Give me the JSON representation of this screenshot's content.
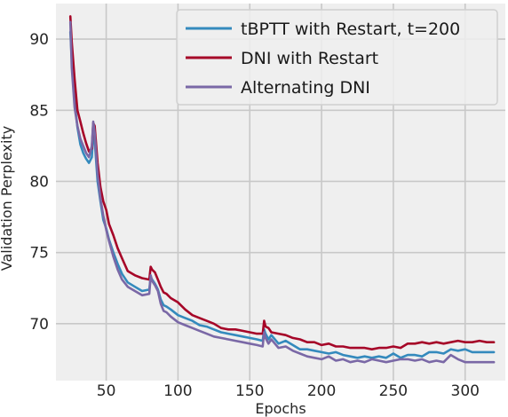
{
  "chart_data": {
    "type": "line",
    "title": "",
    "xlabel": "Epochs",
    "ylabel": "Validation Perplexity",
    "xlim": [
      15,
      328
    ],
    "ylim": [
      66,
      92.5
    ],
    "xticks": [
      50,
      100,
      150,
      200,
      250,
      300
    ],
    "yticks": [
      70,
      75,
      80,
      85,
      90
    ],
    "grid": true,
    "legend_position": "top-right",
    "background": "#efefef",
    "series": [
      {
        "name": "tBPTT with Restart, t=200",
        "color": "#348abd",
        "points": [
          [
            25,
            90.5
          ],
          [
            26,
            88.6
          ],
          [
            28,
            85.6
          ],
          [
            30,
            83.8
          ],
          [
            32,
            82.6
          ],
          [
            34,
            82.0
          ],
          [
            36,
            81.6
          ],
          [
            38,
            81.3
          ],
          [
            40,
            81.7
          ],
          [
            41,
            83.4
          ],
          [
            42,
            82.9
          ],
          [
            44,
            80.0
          ],
          [
            46,
            78.6
          ],
          [
            48,
            77.3
          ],
          [
            50,
            76.7
          ],
          [
            52,
            75.9
          ],
          [
            55,
            75.0
          ],
          [
            58,
            74.2
          ],
          [
            61,
            73.5
          ],
          [
            65,
            72.9
          ],
          [
            70,
            72.6
          ],
          [
            75,
            72.3
          ],
          [
            80,
            72.4
          ],
          [
            81,
            73.3
          ],
          [
            82,
            73.1
          ],
          [
            84,
            72.8
          ],
          [
            86,
            72.4
          ],
          [
            88,
            71.7
          ],
          [
            90,
            71.3
          ],
          [
            92,
            71.2
          ],
          [
            95,
            71.0
          ],
          [
            100,
            70.6
          ],
          [
            105,
            70.4
          ],
          [
            110,
            70.2
          ],
          [
            115,
            69.9
          ],
          [
            120,
            69.8
          ],
          [
            125,
            69.6
          ],
          [
            130,
            69.4
          ],
          [
            135,
            69.3
          ],
          [
            140,
            69.2
          ],
          [
            145,
            69.1
          ],
          [
            150,
            69.0
          ],
          [
            155,
            68.9
          ],
          [
            159,
            68.8
          ],
          [
            160,
            69.6
          ],
          [
            161,
            69.3
          ],
          [
            163,
            68.9
          ],
          [
            165,
            69.2
          ],
          [
            170,
            68.6
          ],
          [
            175,
            68.8
          ],
          [
            180,
            68.5
          ],
          [
            185,
            68.2
          ],
          [
            190,
            68.2
          ],
          [
            195,
            68.1
          ],
          [
            200,
            68.0
          ],
          [
            205,
            67.9
          ],
          [
            210,
            68.0
          ],
          [
            215,
            67.8
          ],
          [
            220,
            67.7
          ],
          [
            225,
            67.6
          ],
          [
            230,
            67.7
          ],
          [
            235,
            67.6
          ],
          [
            240,
            67.7
          ],
          [
            245,
            67.6
          ],
          [
            250,
            67.9
          ],
          [
            255,
            67.6
          ],
          [
            260,
            67.8
          ],
          [
            265,
            67.8
          ],
          [
            270,
            67.7
          ],
          [
            275,
            68.0
          ],
          [
            280,
            68.0
          ],
          [
            285,
            67.9
          ],
          [
            290,
            68.2
          ],
          [
            295,
            68.1
          ],
          [
            300,
            68.2
          ],
          [
            305,
            68.0
          ],
          [
            310,
            68.0
          ],
          [
            315,
            68.0
          ],
          [
            320,
            68.0
          ]
        ]
      },
      {
        "name": "DNI with Restart",
        "color": "#a60628",
        "points": [
          [
            25,
            91.6
          ],
          [
            26,
            89.8
          ],
          [
            28,
            87.2
          ],
          [
            30,
            85.0
          ],
          [
            32,
            84.2
          ],
          [
            34,
            83.4
          ],
          [
            36,
            82.7
          ],
          [
            38,
            82.1
          ],
          [
            40,
            82.3
          ],
          [
            41,
            84.1
          ],
          [
            42,
            83.9
          ],
          [
            44,
            81.3
          ],
          [
            46,
            79.6
          ],
          [
            48,
            78.6
          ],
          [
            50,
            78.0
          ],
          [
            52,
            77.0
          ],
          [
            55,
            76.2
          ],
          [
            58,
            75.3
          ],
          [
            61,
            74.6
          ],
          [
            65,
            73.7
          ],
          [
            70,
            73.4
          ],
          [
            75,
            73.2
          ],
          [
            80,
            73.1
          ],
          [
            81,
            74.0
          ],
          [
            82,
            73.8
          ],
          [
            84,
            73.6
          ],
          [
            86,
            73.1
          ],
          [
            88,
            72.6
          ],
          [
            90,
            72.2
          ],
          [
            92,
            72.1
          ],
          [
            95,
            71.8
          ],
          [
            100,
            71.5
          ],
          [
            105,
            71.0
          ],
          [
            110,
            70.6
          ],
          [
            115,
            70.4
          ],
          [
            120,
            70.2
          ],
          [
            125,
            70.0
          ],
          [
            130,
            69.7
          ],
          [
            135,
            69.6
          ],
          [
            140,
            69.6
          ],
          [
            145,
            69.5
          ],
          [
            150,
            69.4
          ],
          [
            155,
            69.3
          ],
          [
            159,
            69.3
          ],
          [
            160,
            70.2
          ],
          [
            161,
            69.8
          ],
          [
            163,
            69.7
          ],
          [
            165,
            69.4
          ],
          [
            170,
            69.3
          ],
          [
            175,
            69.2
          ],
          [
            180,
            69.0
          ],
          [
            185,
            68.9
          ],
          [
            190,
            68.7
          ],
          [
            195,
            68.7
          ],
          [
            200,
            68.5
          ],
          [
            205,
            68.6
          ],
          [
            210,
            68.4
          ],
          [
            215,
            68.4
          ],
          [
            220,
            68.3
          ],
          [
            225,
            68.3
          ],
          [
            230,
            68.3
          ],
          [
            235,
            68.2
          ],
          [
            240,
            68.3
          ],
          [
            245,
            68.3
          ],
          [
            250,
            68.4
          ],
          [
            255,
            68.3
          ],
          [
            260,
            68.6
          ],
          [
            265,
            68.6
          ],
          [
            270,
            68.7
          ],
          [
            275,
            68.6
          ],
          [
            280,
            68.7
          ],
          [
            285,
            68.6
          ],
          [
            290,
            68.7
          ],
          [
            295,
            68.8
          ],
          [
            300,
            68.7
          ],
          [
            305,
            68.7
          ],
          [
            310,
            68.8
          ],
          [
            315,
            68.7
          ],
          [
            320,
            68.7
          ]
        ]
      },
      {
        "name": "Alternating DNI",
        "color": "#7a68a6",
        "points": [
          [
            25,
            91.2
          ],
          [
            26,
            88.0
          ],
          [
            28,
            85.2
          ],
          [
            30,
            83.9
          ],
          [
            32,
            83.0
          ],
          [
            34,
            82.5
          ],
          [
            36,
            82.0
          ],
          [
            38,
            81.7
          ],
          [
            40,
            82.5
          ],
          [
            41,
            84.2
          ],
          [
            42,
            83.4
          ],
          [
            44,
            80.5
          ],
          [
            46,
            78.8
          ],
          [
            48,
            77.6
          ],
          [
            50,
            76.6
          ],
          [
            52,
            75.8
          ],
          [
            55,
            74.7
          ],
          [
            58,
            73.8
          ],
          [
            61,
            73.1
          ],
          [
            65,
            72.6
          ],
          [
            70,
            72.3
          ],
          [
            75,
            72.0
          ],
          [
            80,
            72.1
          ],
          [
            81,
            73.4
          ],
          [
            82,
            73.0
          ],
          [
            84,
            72.7
          ],
          [
            86,
            72.3
          ],
          [
            88,
            71.4
          ],
          [
            90,
            70.9
          ],
          [
            92,
            70.8
          ],
          [
            95,
            70.5
          ],
          [
            100,
            70.1
          ],
          [
            105,
            69.9
          ],
          [
            110,
            69.7
          ],
          [
            115,
            69.5
          ],
          [
            120,
            69.3
          ],
          [
            125,
            69.1
          ],
          [
            130,
            69.0
          ],
          [
            135,
            68.9
          ],
          [
            140,
            68.8
          ],
          [
            145,
            68.7
          ],
          [
            150,
            68.6
          ],
          [
            155,
            68.5
          ],
          [
            159,
            68.4
          ],
          [
            160,
            69.4
          ],
          [
            161,
            69.0
          ],
          [
            163,
            68.6
          ],
          [
            165,
            68.9
          ],
          [
            170,
            68.3
          ],
          [
            175,
            68.4
          ],
          [
            180,
            68.1
          ],
          [
            185,
            67.9
          ],
          [
            190,
            67.7
          ],
          [
            195,
            67.6
          ],
          [
            200,
            67.5
          ],
          [
            205,
            67.7
          ],
          [
            210,
            67.4
          ],
          [
            215,
            67.5
          ],
          [
            220,
            67.3
          ],
          [
            225,
            67.4
          ],
          [
            230,
            67.3
          ],
          [
            235,
            67.5
          ],
          [
            240,
            67.4
          ],
          [
            245,
            67.3
          ],
          [
            250,
            67.4
          ],
          [
            255,
            67.5
          ],
          [
            260,
            67.5
          ],
          [
            265,
            67.4
          ],
          [
            270,
            67.5
          ],
          [
            275,
            67.3
          ],
          [
            280,
            67.4
          ],
          [
            285,
            67.3
          ],
          [
            290,
            67.8
          ],
          [
            295,
            67.5
          ],
          [
            300,
            67.3
          ],
          [
            305,
            67.3
          ],
          [
            310,
            67.3
          ],
          [
            315,
            67.3
          ],
          [
            320,
            67.3
          ]
        ]
      }
    ]
  }
}
